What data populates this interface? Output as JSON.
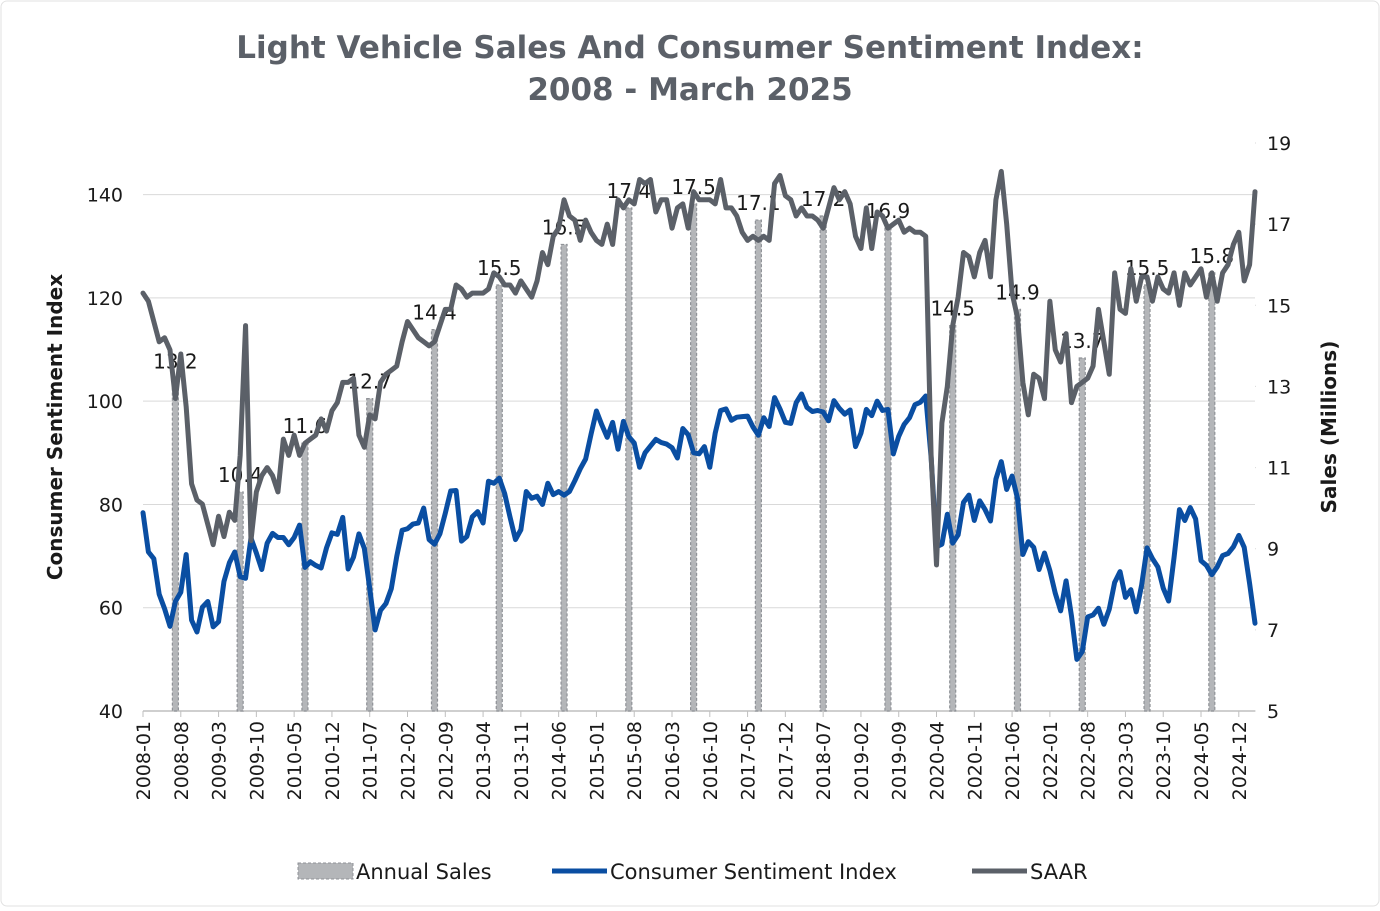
{
  "chart_data": {
    "type": "combo",
    "title": [
      "Light Vehicle Sales And Consumer Sentiment Index:",
      "2008 - March 2025"
    ],
    "y_label": "Consumer Sentiment Index",
    "y2_label": "Sales (Millions)",
    "ylim": [
      40,
      150
    ],
    "yticks": [
      40,
      60,
      80,
      100,
      120,
      140
    ],
    "y2lim": [
      5,
      19
    ],
    "y2ticks": [
      5,
      7,
      9,
      11,
      13,
      15,
      17,
      19
    ],
    "grid": true,
    "legend": "bottom",
    "categories": [
      "2008-01",
      null,
      null,
      null,
      null,
      null,
      null,
      "2008-08",
      null,
      null,
      null,
      null,
      null,
      null,
      "2009-03",
      null,
      null,
      null,
      null,
      null,
      null,
      "2009-10",
      null,
      null,
      null,
      null,
      null,
      null,
      "2010-05",
      null,
      null,
      null,
      null,
      null,
      null,
      "2010-12",
      null,
      null,
      null,
      null,
      null,
      null,
      "2011-07",
      null,
      null,
      null,
      null,
      null,
      null,
      "2012-02",
      null,
      null,
      null,
      null,
      null,
      null,
      "2012-09",
      null,
      null,
      null,
      null,
      null,
      null,
      "2013-04",
      null,
      null,
      null,
      null,
      null,
      null,
      "2013-11",
      null,
      null,
      null,
      null,
      null,
      null,
      "2014-06",
      null,
      null,
      null,
      null,
      null,
      null,
      "2015-01",
      null,
      null,
      null,
      null,
      null,
      null,
      "2015-08",
      null,
      null,
      null,
      null,
      null,
      null,
      "2016-03",
      null,
      null,
      null,
      null,
      null,
      null,
      "2016-10",
      null,
      null,
      null,
      null,
      null,
      null,
      "2017-05",
      null,
      null,
      null,
      null,
      null,
      null,
      "2017-12",
      null,
      null,
      null,
      null,
      null,
      null,
      "2018-07",
      null,
      null,
      null,
      null,
      null,
      null,
      "2019-02",
      null,
      null,
      null,
      null,
      null,
      null,
      "2019-09",
      null,
      null,
      null,
      null,
      null,
      null,
      "2020-04",
      null,
      null,
      null,
      null,
      null,
      null,
      "2020-11",
      null,
      null,
      null,
      null,
      null,
      null,
      "2021-06",
      null,
      null,
      null,
      null,
      null,
      null,
      "2022-01",
      null,
      null,
      null,
      null,
      null,
      null,
      "2022-08",
      null,
      null,
      null,
      null,
      null,
      null,
      "2023-03",
      null,
      null,
      null,
      null,
      null,
      null,
      "2023-10",
      null,
      null,
      null,
      null,
      null,
      null,
      "2024-05",
      null,
      null,
      null,
      null,
      null,
      null,
      "2024-12",
      null,
      null,
      null
    ],
    "series": [
      {
        "name": "Annual Sales",
        "type": "bar",
        "axis": "y2",
        "color": "#b4b6b9",
        "values": [
          null,
          null,
          null,
          null,
          null,
          null,
          13.2,
          null,
          null,
          null,
          null,
          null,
          null,
          null,
          null,
          null,
          null,
          null,
          10.4,
          null,
          null,
          null,
          null,
          null,
          null,
          null,
          null,
          null,
          null,
          null,
          11.6,
          null,
          null,
          null,
          null,
          null,
          null,
          null,
          null,
          null,
          null,
          null,
          12.7,
          null,
          null,
          null,
          null,
          null,
          null,
          null,
          null,
          null,
          null,
          null,
          14.4,
          null,
          null,
          null,
          null,
          null,
          null,
          null,
          null,
          null,
          null,
          null,
          15.5,
          null,
          null,
          null,
          null,
          null,
          null,
          null,
          null,
          null,
          null,
          null,
          16.5,
          null,
          null,
          null,
          null,
          null,
          null,
          null,
          null,
          null,
          null,
          null,
          17.4,
          null,
          null,
          null,
          null,
          null,
          null,
          null,
          null,
          null,
          null,
          null,
          17.5,
          null,
          null,
          null,
          null,
          null,
          null,
          null,
          null,
          null,
          null,
          null,
          17.1,
          null,
          null,
          null,
          null,
          null,
          null,
          null,
          null,
          null,
          null,
          null,
          17.2,
          null,
          null,
          null,
          null,
          null,
          null,
          null,
          null,
          null,
          null,
          null,
          16.9,
          null,
          null,
          null,
          null,
          null,
          null,
          null,
          null,
          null,
          null,
          null,
          14.5,
          null,
          null,
          null,
          null,
          null,
          null,
          null,
          null,
          null,
          null,
          null,
          14.9,
          null,
          null,
          null,
          null,
          null,
          null,
          null,
          null,
          null,
          null,
          null,
          13.7,
          null,
          null,
          null,
          null,
          null,
          null,
          null,
          null,
          null,
          null,
          null,
          15.5,
          null,
          null,
          null,
          null,
          null,
          null,
          null,
          null,
          null,
          null,
          null,
          15.8,
          null,
          null,
          null,
          null,
          null,
          null,
          null,
          null
        ]
      },
      {
        "name": "Consumer Sentiment Index",
        "type": "line",
        "axis": "y",
        "color": "#0a4ea2",
        "values": [
          78.4,
          70.8,
          69.5,
          62.6,
          59.8,
          56.4,
          61.2,
          63.0,
          70.3,
          57.6,
          55.3,
          60.1,
          61.2,
          56.3,
          57.3,
          65.1,
          68.7,
          70.8,
          66.0,
          65.7,
          73.5,
          70.6,
          67.4,
          72.5,
          74.4,
          73.6,
          73.6,
          72.2,
          73.6,
          76.0,
          67.8,
          68.9,
          68.2,
          67.7,
          71.6,
          74.5,
          74.2,
          77.5,
          67.5,
          69.8,
          74.3,
          71.5,
          63.7,
          55.7,
          59.5,
          60.8,
          63.7,
          69.9,
          75.0,
          75.3,
          76.2,
          76.4,
          79.3,
          73.2,
          72.3,
          74.3,
          78.3,
          82.6,
          82.7,
          72.9,
          73.8,
          77.6,
          78.6,
          76.4,
          84.5,
          84.1,
          85.1,
          82.1,
          77.5,
          73.2,
          75.1,
          82.5,
          81.2,
          81.6,
          80.0,
          84.1,
          81.9,
          82.5,
          81.8,
          82.5,
          84.6,
          86.9,
          88.8,
          93.6,
          98.1,
          95.4,
          93.0,
          95.9,
          90.7,
          96.1,
          93.1,
          91.9,
          87.2,
          90.0,
          91.3,
          92.6,
          92.0,
          91.7,
          91.0,
          89.0,
          94.7,
          93.5,
          90.0,
          89.8,
          91.2,
          87.2,
          93.8,
          98.2,
          98.5,
          96.3,
          96.9,
          97.0,
          97.1,
          95.0,
          93.4,
          96.8,
          95.1,
          100.7,
          98.5,
          95.9,
          95.7,
          99.7,
          101.4,
          98.8,
          98.0,
          98.2,
          97.9,
          96.2,
          100.1,
          98.6,
          97.5,
          98.3,
          91.2,
          93.8,
          98.4,
          97.2,
          100.0,
          98.2,
          98.4,
          89.8,
          93.2,
          95.5,
          96.8,
          99.3,
          99.8,
          101.0,
          89.1,
          71.8,
          72.3,
          78.1,
          72.5,
          74.1,
          80.4,
          81.8,
          76.9,
          80.7,
          79.0,
          76.8,
          84.9,
          88.3,
          82.9,
          85.5,
          81.2,
          70.3,
          72.8,
          71.7,
          67.4,
          70.6,
          67.2,
          62.8,
          59.4,
          65.2,
          58.4,
          50.0,
          51.5,
          58.2,
          58.6,
          59.9,
          56.8,
          59.7,
          64.9,
          67.0,
          62.0,
          63.5,
          59.2,
          64.4,
          71.6,
          69.5,
          67.9,
          63.8,
          61.3,
          69.7,
          79.0,
          76.9,
          79.4,
          77.2,
          69.1,
          68.2,
          66.4,
          67.9,
          70.1,
          70.5,
          71.8,
          74.0,
          71.7,
          64.7,
          57.0
        ]
      },
      {
        "name": "SAAR",
        "type": "line",
        "axis": "y2",
        "color": "#5b6068",
        "values": [
          15.3,
          15.1,
          14.6,
          14.1,
          14.2,
          13.9,
          12.7,
          13.8,
          12.5,
          10.6,
          10.2,
          10.1,
          9.6,
          9.1,
          9.8,
          9.3,
          9.9,
          9.7,
          11.3,
          14.5,
          9.2,
          10.4,
          10.8,
          11.0,
          10.8,
          10.4,
          11.7,
          11.3,
          11.8,
          11.3,
          11.6,
          11.7,
          11.8,
          12.2,
          11.9,
          12.4,
          12.6,
          13.1,
          13.1,
          13.2,
          11.8,
          11.5,
          12.3,
          12.2,
          13.1,
          13.3,
          13.4,
          13.5,
          14.1,
          14.6,
          14.4,
          14.2,
          14.1,
          14.0,
          14.1,
          14.5,
          14.9,
          14.9,
          15.5,
          15.4,
          15.2,
          15.3,
          15.3,
          15.3,
          15.4,
          15.8,
          15.7,
          15.5,
          15.5,
          15.3,
          15.6,
          15.4,
          15.2,
          15.6,
          16.3,
          16.0,
          16.7,
          16.9,
          17.6,
          17.2,
          17.1,
          16.6,
          17.1,
          16.8,
          16.6,
          16.5,
          17.0,
          16.5,
          17.6,
          17.4,
          17.6,
          17.5,
          18.1,
          18.0,
          18.1,
          17.3,
          17.6,
          17.6,
          16.9,
          17.4,
          17.5,
          16.9,
          17.8,
          17.6,
          17.6,
          17.6,
          17.5,
          18.1,
          17.4,
          17.4,
          17.2,
          16.8,
          16.6,
          16.7,
          16.6,
          16.7,
          16.6,
          18.0,
          18.2,
          17.7,
          17.6,
          17.2,
          17.4,
          17.2,
          17.2,
          17.1,
          16.9,
          17.4,
          17.9,
          17.6,
          17.8,
          17.5,
          16.7,
          16.4,
          17.4,
          16.4,
          17.3,
          17.2,
          16.9,
          17.0,
          17.1,
          16.8,
          16.9,
          16.8,
          16.8,
          16.7,
          11.3,
          8.6,
          12.1,
          13.0,
          14.5,
          15.2,
          16.3,
          16.2,
          15.7,
          16.3,
          16.6,
          15.7,
          17.6,
          18.3,
          17.0,
          15.3,
          14.7,
          13.1,
          12.3,
          13.3,
          13.2,
          12.7,
          15.1,
          13.9,
          13.6,
          14.3,
          12.6,
          13.0,
          13.1,
          13.2,
          13.5,
          14.9,
          14.1,
          13.3,
          15.8,
          14.9,
          14.8,
          15.9,
          15.1,
          15.7,
          15.7,
          15.1,
          15.7,
          15.4,
          15.3,
          15.8,
          15.0,
          15.8,
          15.5,
          15.7,
          15.9,
          15.2,
          15.8,
          15.1,
          15.8,
          16.0,
          16.5,
          16.8,
          15.6,
          16.0,
          17.8
        ]
      }
    ]
  }
}
